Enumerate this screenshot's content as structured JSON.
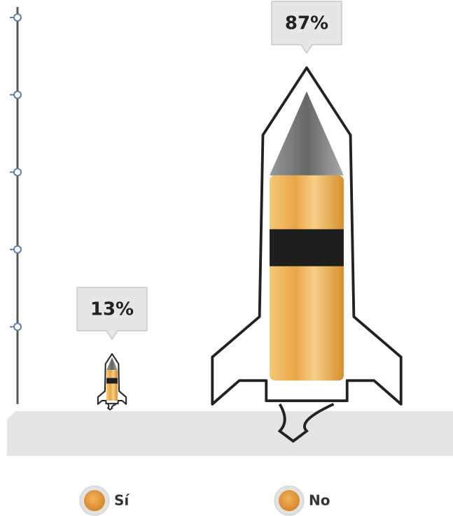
{
  "chart_data": {
    "type": "pictograph",
    "categories": [
      "Sí",
      "No"
    ],
    "values": [
      13,
      87
    ],
    "value_labels": [
      "13%",
      "87%"
    ],
    "color": "#e9a546",
    "ylim": [
      0,
      100
    ],
    "yticks": [
      20,
      40,
      60,
      80,
      100
    ]
  }
}
